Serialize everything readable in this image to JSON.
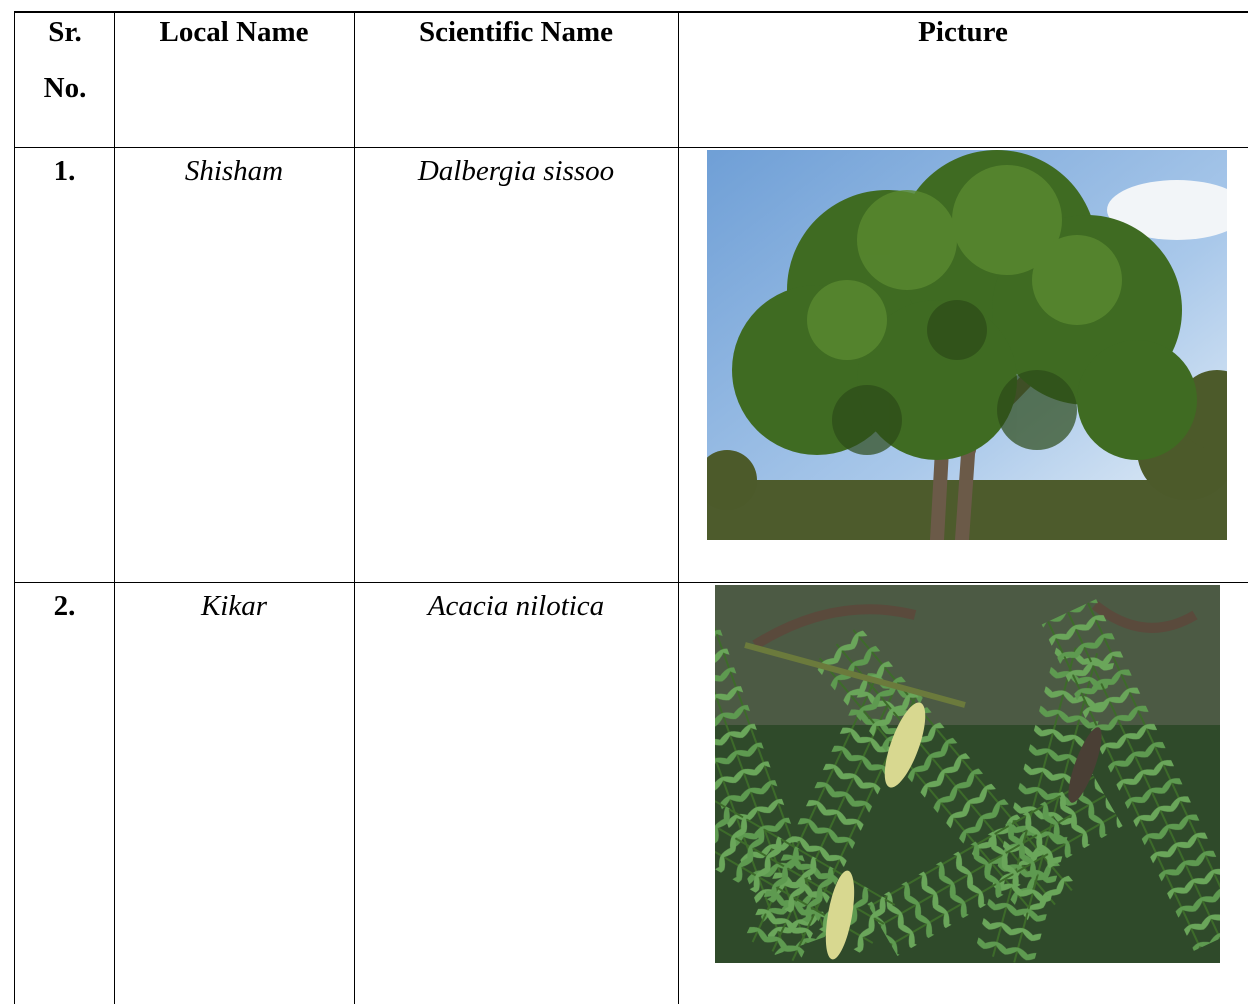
{
  "table": {
    "headers": [
      "Sr. No.",
      "Local Name",
      "Scientific Name",
      "Picture"
    ],
    "rows": [
      [
        "1.",
        "Shisham",
        "Dalbergia sissoo"
      ],
      [
        "2.",
        "Kikar",
        "Acacia nilotica"
      ]
    ]
  }
}
